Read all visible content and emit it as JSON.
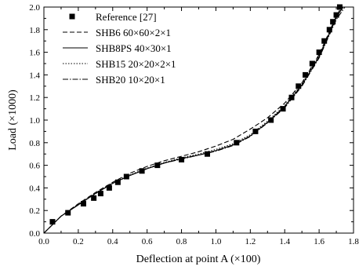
{
  "chart_data": {
    "type": "line",
    "title": "",
    "xlabel": "Deflection at point A (×100)",
    "ylabel": "Load (×1000)",
    "xlim": [
      0.0,
      1.8
    ],
    "ylim": [
      0.0,
      2.0
    ],
    "x_ticks": [
      "0.0",
      "0.2",
      "0.4",
      "0.6",
      "0.8",
      "1.0",
      "1.2",
      "1.4",
      "1.6",
      "1.8"
    ],
    "y_ticks": [
      "0.0",
      "0.2",
      "0.4",
      "0.6",
      "0.8",
      "1.0",
      "1.2",
      "1.4",
      "1.6",
      "1.8",
      "2.0"
    ],
    "grid": false,
    "legend_position": "top-left",
    "series": [
      {
        "name": "Reference [27]",
        "style": "square-markers",
        "x": [
          0.05,
          0.14,
          0.23,
          0.29,
          0.33,
          0.38,
          0.43,
          0.48,
          0.57,
          0.66,
          0.8,
          0.95,
          1.12,
          1.23,
          1.32,
          1.39,
          1.44,
          1.48,
          1.52,
          1.56,
          1.6,
          1.63,
          1.66,
          1.68,
          1.7,
          1.72
        ],
        "y": [
          0.1,
          0.18,
          0.26,
          0.31,
          0.35,
          0.4,
          0.45,
          0.5,
          0.55,
          0.6,
          0.65,
          0.7,
          0.8,
          0.9,
          1.0,
          1.1,
          1.2,
          1.3,
          1.4,
          1.5,
          1.6,
          1.7,
          1.8,
          1.87,
          1.93,
          2.0
        ]
      },
      {
        "name": "SHB6 60×60×2×1",
        "style": "dashed",
        "x": [
          0.0,
          0.1,
          0.2,
          0.3,
          0.4,
          0.5,
          0.6,
          0.7,
          0.8,
          0.9,
          1.0,
          1.1,
          1.2,
          1.3,
          1.4,
          1.5,
          1.6,
          1.65,
          1.7,
          1.73
        ],
        "y": [
          0.0,
          0.15,
          0.26,
          0.36,
          0.45,
          0.53,
          0.59,
          0.64,
          0.68,
          0.72,
          0.77,
          0.83,
          0.92,
          1.02,
          1.15,
          1.33,
          1.58,
          1.75,
          1.92,
          2.0
        ]
      },
      {
        "name": "SHB8PS 40×30×1",
        "style": "solid",
        "x": [
          0.0,
          0.1,
          0.2,
          0.3,
          0.4,
          0.5,
          0.6,
          0.7,
          0.8,
          0.9,
          1.0,
          1.1,
          1.2,
          1.3,
          1.4,
          1.5,
          1.6,
          1.65,
          1.7,
          1.74
        ],
        "y": [
          0.0,
          0.15,
          0.25,
          0.35,
          0.44,
          0.51,
          0.57,
          0.62,
          0.66,
          0.69,
          0.73,
          0.78,
          0.86,
          0.98,
          1.12,
          1.31,
          1.56,
          1.73,
          1.91,
          2.0
        ]
      },
      {
        "name": "SHB15 20×20×2×1",
        "style": "dotted",
        "x": [
          0.0,
          0.1,
          0.2,
          0.3,
          0.4,
          0.5,
          0.6,
          0.7,
          0.8,
          0.9,
          1.0,
          1.1,
          1.2,
          1.3,
          1.4,
          1.5,
          1.6,
          1.65,
          1.7,
          1.74
        ],
        "y": [
          0.0,
          0.15,
          0.255,
          0.355,
          0.445,
          0.515,
          0.575,
          0.625,
          0.665,
          0.7,
          0.74,
          0.79,
          0.87,
          0.99,
          1.13,
          1.32,
          1.57,
          1.74,
          1.92,
          2.0
        ]
      },
      {
        "name": "SHB20 10×20×1",
        "style": "dash-dot",
        "x": [
          0.0,
          0.1,
          0.2,
          0.3,
          0.4,
          0.5,
          0.6,
          0.7,
          0.8,
          0.9,
          1.0,
          1.1,
          1.2,
          1.3,
          1.4,
          1.5,
          1.6,
          1.65,
          1.7,
          1.75
        ],
        "y": [
          0.0,
          0.15,
          0.25,
          0.35,
          0.44,
          0.51,
          0.57,
          0.62,
          0.655,
          0.69,
          0.725,
          0.775,
          0.855,
          0.975,
          1.11,
          1.3,
          1.55,
          1.72,
          1.89,
          2.0
        ]
      }
    ]
  }
}
